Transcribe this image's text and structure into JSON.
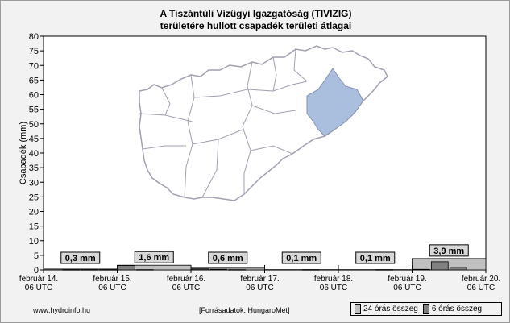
{
  "title_line1": "A Tiszántúli Vízügyi Igazgatóság (TIVIZIG)",
  "title_line2": "területére hullott csapadék területi átlagai",
  "footer": {
    "site": "www.hydroinfo.hu",
    "source": "[Forrásadatok: HungaroMet]"
  },
  "legend": {
    "item_24h": "24 órás összeg",
    "item_6h": "6 órás összeg",
    "color_24h": "#c0c0c0",
    "color_6h": "#808080"
  },
  "colors": {
    "plot_bg": "#ffffff",
    "map_highlight": "#aabfdd",
    "map_outline": "#a0a0b0"
  },
  "chart_data": {
    "type": "bar",
    "ylabel": "Csapadék (mm)",
    "ylim": [
      0,
      80
    ],
    "yticks": [
      0,
      5,
      10,
      15,
      20,
      25,
      30,
      35,
      40,
      45,
      50,
      55,
      60,
      65,
      70,
      75,
      80
    ],
    "x_ticks": [
      {
        "line1": "február 14.",
        "line2": "06 UTC"
      },
      {
        "line1": "február 15.",
        "line2": "06 UTC"
      },
      {
        "line1": "február 16.",
        "line2": "06 UTC"
      },
      {
        "line1": "február 17.",
        "line2": "06 UTC"
      },
      {
        "line1": "február 18.",
        "line2": "06 UTC"
      },
      {
        "line1": "február 19.",
        "line2": "06 UTC"
      },
      {
        "line1": "február 20.",
        "line2": "06 UTC"
      }
    ],
    "series": [
      {
        "name": "24 órás összeg",
        "values": [
          0.3,
          1.6,
          0.6,
          0.1,
          0.1,
          3.9
        ]
      },
      {
        "name": "6 órás összeg",
        "values": [
          0.0,
          0.1,
          0.1,
          0.1,
          1.5,
          0.1,
          0.0,
          0.0,
          0.3,
          0.2,
          0.1,
          0.0,
          0.0,
          0.0,
          0.1,
          0.0,
          0.0,
          0.0,
          0.1,
          0.0,
          0.2,
          2.8,
          0.9,
          0.0
        ]
      }
    ],
    "data_labels": [
      "0,3 mm",
      "1,6 mm",
      "0,6 mm",
      "0,1 mm",
      "0,1 mm",
      "3,9 mm"
    ]
  }
}
